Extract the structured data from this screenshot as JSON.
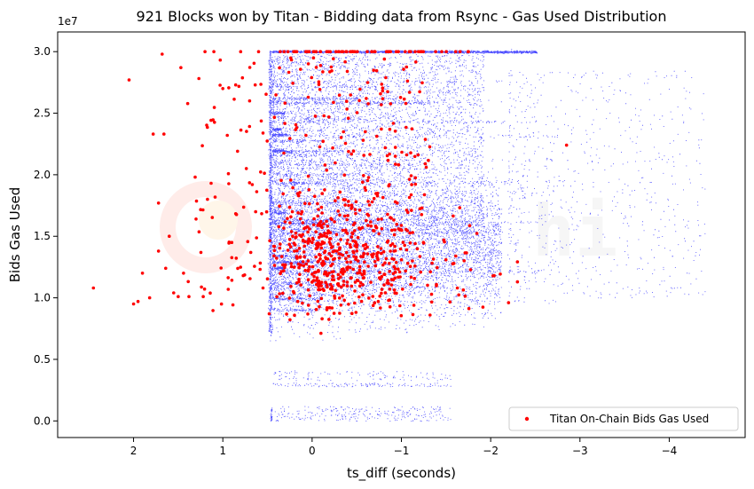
{
  "chart_data": {
    "type": "scatter",
    "title": "921 Blocks won by Titan - Bidding data from Rsync - Gas Used Distribution",
    "xlabel": "ts_diff (seconds)",
    "ylabel": "Bids Gas Used",
    "y_offset_label": "1e7",
    "x_axis_inverted": true,
    "xlim": [
      2.85,
      -4.85
    ],
    "ylim": [
      -1350000,
      31600000
    ],
    "x_ticks": [
      {
        "value": 2,
        "label": "2"
      },
      {
        "value": 1,
        "label": "1"
      },
      {
        "value": 0,
        "label": "0"
      },
      {
        "value": -1,
        "label": "−1"
      },
      {
        "value": -2,
        "label": "−2"
      },
      {
        "value": -3,
        "label": "−3"
      },
      {
        "value": -4,
        "label": "−4"
      }
    ],
    "y_ticks": [
      {
        "value": 0,
        "label": "0.0"
      },
      {
        "value": 5000000,
        "label": "0.5"
      },
      {
        "value": 10000000,
        "label": "1.0"
      },
      {
        "value": 15000000,
        "label": "1.5"
      },
      {
        "value": 20000000,
        "label": "2.0"
      },
      {
        "value": 25000000,
        "label": "2.5"
      },
      {
        "value": 30000000,
        "label": "3.0"
      }
    ],
    "grid": false,
    "legend_position": "lower right",
    "series": [
      {
        "name": "",
        "color": "#0000ff",
        "marker": "small dot",
        "point_count": 60000,
        "description_ranges": {
          "main_cluster_x": [
            0.5,
            -2.4
          ],
          "main_cluster_y": [
            6200000,
            30000000
          ],
          "sparse_x": [
            -2.4,
            -4.4
          ],
          "top_line_y": 30000000,
          "low_band_y": [
            0,
            4000000
          ]
        }
      },
      {
        "name": "Titan On-Chain Bids Gas Used",
        "color": "#ff0000",
        "marker": "dot",
        "count": 921,
        "points_sample": [
          {
            "x": 2.45,
            "y": 10800000
          },
          {
            "x": 2.05,
            "y": 27700000
          },
          {
            "x": 2.0,
            "y": 9500000
          },
          {
            "x": 1.95,
            "y": 9700000
          },
          {
            "x": 1.9,
            "y": 12000000
          },
          {
            "x": 1.82,
            "y": 10000000
          },
          {
            "x": 1.78,
            "y": 23300000
          },
          {
            "x": 1.72,
            "y": 17700000
          },
          {
            "x": 1.72,
            "y": 13800000
          },
          {
            "x": 1.68,
            "y": 29800000
          },
          {
            "x": 1.66,
            "y": 23300000
          },
          {
            "x": 1.64,
            "y": 12400000
          },
          {
            "x": 1.6,
            "y": 15000000
          },
          {
            "x": 1.55,
            "y": 10400000
          },
          {
            "x": 1.5,
            "y": 10100000
          },
          {
            "x": 1.47,
            "y": 28700000
          },
          {
            "x": 1.44,
            "y": 12000000
          },
          {
            "x": 1.38,
            "y": 10100000
          },
          {
            "x": 1.3,
            "y": 16400000
          },
          {
            "x": 1.22,
            "y": 10100000
          },
          {
            "x": 1.2,
            "y": 30000000
          },
          {
            "x": 1.1,
            "y": 30000000
          },
          {
            "x": 1.0,
            "y": 27000000
          },
          {
            "x": 0.95,
            "y": 23200000
          },
          {
            "x": 0.9,
            "y": 14500000
          },
          {
            "x": 0.8,
            "y": 30000000
          },
          {
            "x": 0.7,
            "y": 26000000
          },
          {
            "x": 0.6,
            "y": 30000000
          },
          {
            "x": 0.55,
            "y": 10800000
          },
          {
            "x": 0.48,
            "y": 8700000
          },
          {
            "x": -2.85,
            "y": 22400000
          },
          {
            "x": -2.2,
            "y": 9600000
          }
        ]
      }
    ]
  },
  "watermark": {
    "text": "hi",
    "logo_colors": [
      "#ff9a8a",
      "#ffd08a"
    ]
  },
  "colors": {
    "blue_series": "#0000ff",
    "red_series": "#ff0000",
    "axes": "#000000",
    "legend_border": "#cccccc"
  }
}
